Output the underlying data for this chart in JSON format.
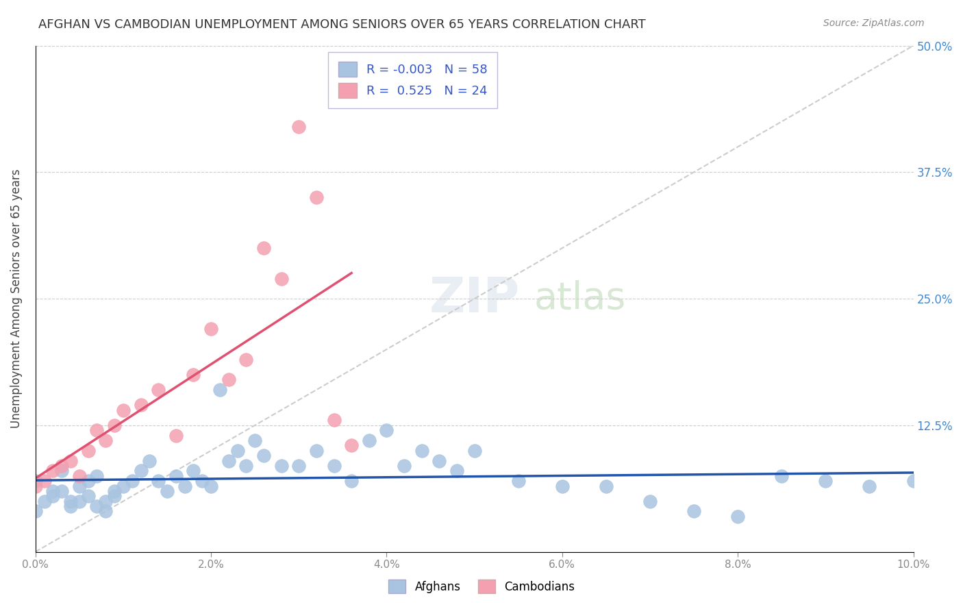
{
  "title": "AFGHAN VS CAMBODIAN UNEMPLOYMENT AMONG SENIORS OVER 65 YEARS CORRELATION CHART",
  "source": "Source: ZipAtlas.com",
  "xlabel_bottom": "",
  "ylabel": "Unemployment Among Seniors over 65 years",
  "xlim": [
    0.0,
    0.1
  ],
  "ylim": [
    0.0,
    0.5
  ],
  "xticks": [
    0.0,
    0.02,
    0.04,
    0.06,
    0.08,
    0.1
  ],
  "xtick_labels": [
    "0.0%",
    "2.0%",
    "4.0%",
    "6.0%",
    "8.0%",
    "10.0%"
  ],
  "yticks": [
    0.0,
    0.125,
    0.25,
    0.375,
    0.5
  ],
  "ytick_labels": [
    "",
    "12.5%",
    "25.0%",
    "37.5%",
    "50.0%"
  ],
  "afghan_R": -0.003,
  "afghan_N": 58,
  "cambodian_R": 0.525,
  "cambodian_N": 24,
  "afghan_color": "#a8c4e0",
  "cambodian_color": "#f4a0b0",
  "afghan_line_color": "#2255aa",
  "cambodian_line_color": "#e05070",
  "trendline_color": "#bbbbbb",
  "watermark": "ZIPatlas",
  "afghan_x": [
    0.0,
    0.002,
    0.003,
    0.004,
    0.005,
    0.006,
    0.007,
    0.008,
    0.009,
    0.01,
    0.011,
    0.012,
    0.013,
    0.014,
    0.015,
    0.016,
    0.017,
    0.018,
    0.019,
    0.02,
    0.021,
    0.022,
    0.023,
    0.024,
    0.025,
    0.026,
    0.028,
    0.03,
    0.032,
    0.034,
    0.036,
    0.038,
    0.04,
    0.042,
    0.044,
    0.046,
    0.048,
    0.05,
    0.055,
    0.06,
    0.065,
    0.07,
    0.075,
    0.08,
    0.085,
    0.09,
    0.095,
    0.1,
    0.0,
    0.001,
    0.002,
    0.003,
    0.004,
    0.005,
    0.006,
    0.007,
    0.008,
    0.009
  ],
  "afghan_y": [
    0.07,
    0.06,
    0.08,
    0.05,
    0.065,
    0.07,
    0.075,
    0.04,
    0.055,
    0.065,
    0.07,
    0.08,
    0.09,
    0.07,
    0.06,
    0.075,
    0.065,
    0.08,
    0.07,
    0.065,
    0.16,
    0.09,
    0.1,
    0.085,
    0.11,
    0.095,
    0.085,
    0.085,
    0.1,
    0.085,
    0.07,
    0.11,
    0.12,
    0.085,
    0.1,
    0.09,
    0.08,
    0.1,
    0.07,
    0.065,
    0.065,
    0.05,
    0.04,
    0.035,
    0.075,
    0.07,
    0.065,
    0.07,
    0.04,
    0.05,
    0.055,
    0.06,
    0.045,
    0.05,
    0.055,
    0.045,
    0.05,
    0.06
  ],
  "cambodian_x": [
    0.0,
    0.001,
    0.002,
    0.003,
    0.004,
    0.005,
    0.006,
    0.007,
    0.008,
    0.009,
    0.01,
    0.012,
    0.014,
    0.016,
    0.018,
    0.02,
    0.022,
    0.024,
    0.026,
    0.028,
    0.03,
    0.032,
    0.034,
    0.036
  ],
  "cambodian_y": [
    0.065,
    0.07,
    0.08,
    0.085,
    0.09,
    0.075,
    0.1,
    0.12,
    0.11,
    0.125,
    0.14,
    0.145,
    0.16,
    0.115,
    0.175,
    0.22,
    0.17,
    0.19,
    0.3,
    0.27,
    0.42,
    0.35,
    0.13,
    0.105
  ]
}
